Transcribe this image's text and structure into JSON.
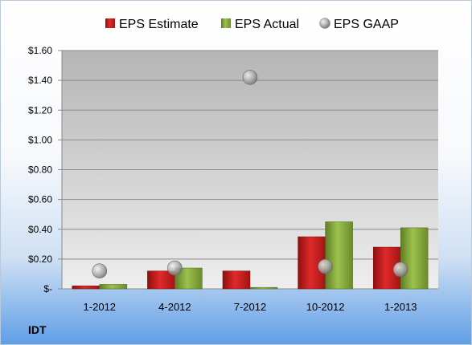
{
  "ticker": "IDT",
  "colors": {
    "estimate": "#cc1f1f",
    "actual": "#8db040",
    "gaap": "#b8b8b8",
    "plot_top": "#b5b5b5",
    "plot_bottom": "#eeeeee"
  },
  "chart_data": {
    "type": "bar",
    "categories": [
      "1-2012",
      "4-2012",
      "7-2012",
      "10-2012",
      "1-2013"
    ],
    "series": [
      {
        "name": "EPS Estimate",
        "kind": "bar",
        "values": [
          0.02,
          0.12,
          0.12,
          0.35,
          0.28
        ]
      },
      {
        "name": "EPS Actual",
        "kind": "bar",
        "values": [
          0.03,
          0.14,
          0.01,
          0.45,
          0.41
        ]
      },
      {
        "name": "EPS GAAP",
        "kind": "marker",
        "values": [
          0.12,
          0.14,
          1.42,
          0.15,
          0.13
        ]
      }
    ],
    "ylim": [
      0,
      1.6
    ],
    "yticks": [
      0,
      0.2,
      0.4,
      0.6,
      0.8,
      1.0,
      1.2,
      1.4,
      1.6
    ],
    "ytick_labels": [
      "$-",
      "$0.20",
      "$0.40",
      "$0.60",
      "$0.80",
      "$1.00",
      "$1.20",
      "$1.40",
      "$1.60"
    ],
    "grid": true,
    "legend": "top"
  }
}
